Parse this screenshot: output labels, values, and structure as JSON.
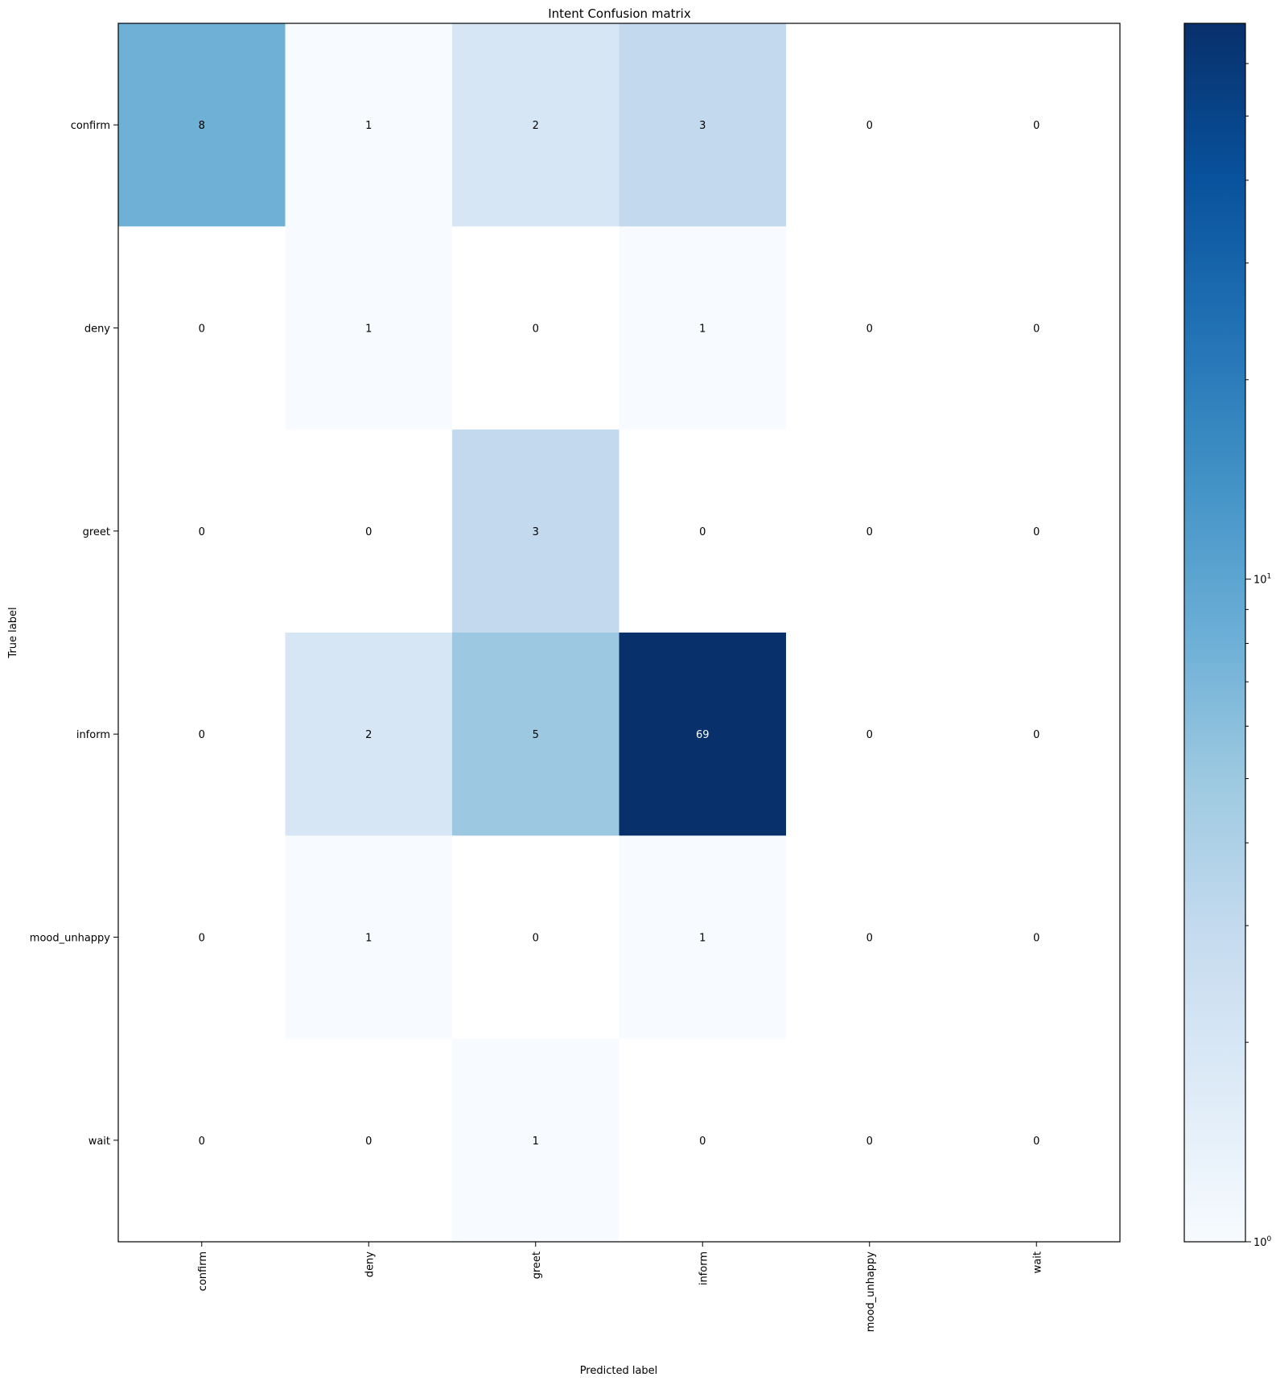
{
  "chart_data": {
    "type": "heatmap",
    "title": "Intent Confusion matrix",
    "xlabel": "Predicted label",
    "ylabel": "True label",
    "x_labels": [
      "confirm",
      "deny",
      "greet",
      "inform",
      "mood_unhappy",
      "wait"
    ],
    "y_labels": [
      "confirm",
      "deny",
      "greet",
      "inform",
      "mood_unhappy",
      "wait"
    ],
    "values": [
      [
        8,
        1,
        2,
        3,
        0,
        0
      ],
      [
        0,
        1,
        0,
        1,
        0,
        0
      ],
      [
        0,
        0,
        3,
        0,
        0,
        0
      ],
      [
        0,
        2,
        5,
        69,
        0,
        0
      ],
      [
        0,
        1,
        0,
        1,
        0,
        0
      ],
      [
        0,
        0,
        1,
        0,
        0,
        0
      ]
    ],
    "colormap": "Blues",
    "color_scale": "log",
    "colorbar": {
      "range": [
        1,
        69
      ],
      "tick_labels": [
        {
          "value": 1,
          "base": "10",
          "exp": "0"
        },
        {
          "value": 10,
          "base": "10",
          "exp": "1"
        }
      ]
    },
    "colors": {
      "low": "#f7fbff",
      "high": "#08306b",
      "zero": "#ffffff",
      "text_dark": "#000000",
      "text_light": "#ffffff"
    },
    "grid": false
  }
}
